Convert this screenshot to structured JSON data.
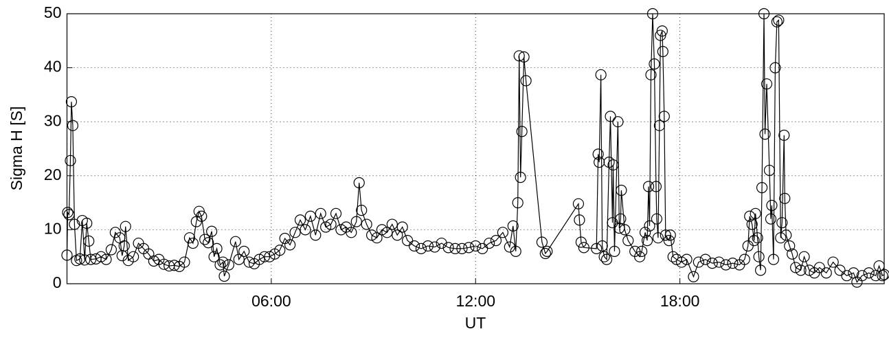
{
  "chart_data": {
    "type": "line",
    "x_label": "UT",
    "y_label": "Sigma H [S]",
    "xlim": [
      0,
      24
    ],
    "ylim": [
      0,
      50
    ],
    "xticks": [
      {
        "value": 6,
        "label": "06:00"
      },
      {
        "value": 12,
        "label": "12:00"
      },
      {
        "value": 18,
        "label": "18:00"
      }
    ],
    "yticks": [
      0,
      10,
      20,
      30,
      40,
      50
    ],
    "grid": true,
    "color": "#000000",
    "marker": "circle",
    "x": [
      0.0,
      0.02,
      0.06,
      0.1,
      0.13,
      0.17,
      0.22,
      0.28,
      0.38,
      0.45,
      0.52,
      0.58,
      0.64,
      0.7,
      0.85,
      1.0,
      1.15,
      1.3,
      1.42,
      1.55,
      1.62,
      1.68,
      1.72,
      1.8,
      1.95,
      2.1,
      2.25,
      2.4,
      2.55,
      2.7,
      2.85,
      3.0,
      3.15,
      3.3,
      3.45,
      3.6,
      3.7,
      3.8,
      3.88,
      3.95,
      4.05,
      4.15,
      4.25,
      4.32,
      4.4,
      4.5,
      4.58,
      4.62,
      4.75,
      4.95,
      5.05,
      5.2,
      5.35,
      5.5,
      5.65,
      5.8,
      5.95,
      6.1,
      6.25,
      6.4,
      6.55,
      6.7,
      6.85,
      7.0,
      7.15,
      7.3,
      7.45,
      7.6,
      7.75,
      7.9,
      8.05,
      8.2,
      8.35,
      8.5,
      8.58,
      8.65,
      8.8,
      8.95,
      9.1,
      9.25,
      9.4,
      9.55,
      9.7,
      9.85,
      10.0,
      10.2,
      10.4,
      10.6,
      10.8,
      11.0,
      11.2,
      11.4,
      11.6,
      11.8,
      12.0,
      12.2,
      12.4,
      12.6,
      12.8,
      13.0,
      13.1,
      13.18,
      13.24,
      13.28,
      13.32,
      13.36,
      13.42,
      13.48,
      13.95,
      14.05,
      14.1,
      15.02,
      15.05,
      15.1,
      15.18,
      15.55,
      15.6,
      15.63,
      15.68,
      15.72,
      15.78,
      15.85,
      15.92,
      15.96,
      16.02,
      16.04,
      16.08,
      16.18,
      16.22,
      16.26,
      16.28,
      16.38,
      16.48,
      16.68,
      16.82,
      16.88,
      16.98,
      17.04,
      17.08,
      17.11,
      17.15,
      17.2,
      17.25,
      17.3,
      17.32,
      17.36,
      17.4,
      17.43,
      17.48,
      17.5,
      17.54,
      17.58,
      17.68,
      17.72,
      17.8,
      17.9,
      18.05,
      18.2,
      18.4,
      18.55,
      18.75,
      18.95,
      19.15,
      19.35,
      19.55,
      19.75,
      19.9,
      20.0,
      20.05,
      20.12,
      20.18,
      20.22,
      20.28,
      20.32,
      20.37,
      20.41,
      20.47,
      20.5,
      20.55,
      20.63,
      20.67,
      20.7,
      20.75,
      20.8,
      20.85,
      20.9,
      20.96,
      21.0,
      21.06,
      21.08,
      21.12,
      21.22,
      21.3,
      21.4,
      21.55,
      21.65,
      21.8,
      21.95,
      22.1,
      22.3,
      22.5,
      22.7,
      22.9,
      23.1,
      23.2,
      23.35,
      23.55,
      23.75,
      23.85,
      23.95,
      24.0
    ],
    "values": [
      5.3,
      13.2,
      12.8,
      22.8,
      33.7,
      29.3,
      11.0,
      4.3,
      4.6,
      11.7,
      4.4,
      11.2,
      7.9,
      4.5,
      4.6,
      5.0,
      4.5,
      6.3,
      9.5,
      8.5,
      5.2,
      7.0,
      10.6,
      4.3,
      5.0,
      7.5,
      6.5,
      5.5,
      4.2,
      4.5,
      3.6,
      3.3,
      3.4,
      3.2,
      4.0,
      8.5,
      7.5,
      11.5,
      13.4,
      12.5,
      8.2,
      7.6,
      9.7,
      5.0,
      6.5,
      3.5,
      4.0,
      1.4,
      3.5,
      7.8,
      4.5,
      6.0,
      4.0,
      3.7,
      4.5,
      5.0,
      5.0,
      5.5,
      6.2,
      8.4,
      7.2,
      9.5,
      11.8,
      10.0,
      12.5,
      9.0,
      13.0,
      10.5,
      11.0,
      13.0,
      10.0,
      10.5,
      9.5,
      11.5,
      18.7,
      13.6,
      11.0,
      9.0,
      8.5,
      10.0,
      9.5,
      11.0,
      9.0,
      10.5,
      8.0,
      7.0,
      6.5,
      7.0,
      6.8,
      7.5,
      6.7,
      6.5,
      6.5,
      6.7,
      7.0,
      6.5,
      7.5,
      8.0,
      9.5,
      6.8,
      10.7,
      6.0,
      15.0,
      42.2,
      19.7,
      28.2,
      42.0,
      37.6,
      7.7,
      5.6,
      6.0,
      14.8,
      11.8,
      7.7,
      6.7,
      6.5,
      24.0,
      22.5,
      38.7,
      7.0,
      5.0,
      4.5,
      22.5,
      31.0,
      11.3,
      22.0,
      6.0,
      30.0,
      10.3,
      12.0,
      17.3,
      10.0,
      8.0,
      6.0,
      5.0,
      6.0,
      9.5,
      8.0,
      18.0,
      10.7,
      38.7,
      50.0,
      40.7,
      18.0,
      12.0,
      8.5,
      29.3,
      46.0,
      46.8,
      43.0,
      31.0,
      9.0,
      8.0,
      9.0,
      5.0,
      4.5,
      4.0,
      4.5,
      1.3,
      4.0,
      4.5,
      3.8,
      4.0,
      3.5,
      3.8,
      3.5,
      4.5,
      7.0,
      12.5,
      11.0,
      8.0,
      13.0,
      8.5,
      5.0,
      2.5,
      17.8,
      50.0,
      27.7,
      37.0,
      21.0,
      12.0,
      14.5,
      4.5,
      40.0,
      48.5,
      48.8,
      8.5,
      11.3,
      27.5,
      15.8,
      9.0,
      7.0,
      5.5,
      3.0,
      2.5,
      5.0,
      2.5,
      2.0,
      3.0,
      2.0,
      4.0,
      2.5,
      1.5,
      2.0,
      0.3,
      1.5,
      2.0,
      1.5,
      3.3,
      1.5,
      1.7
    ]
  }
}
